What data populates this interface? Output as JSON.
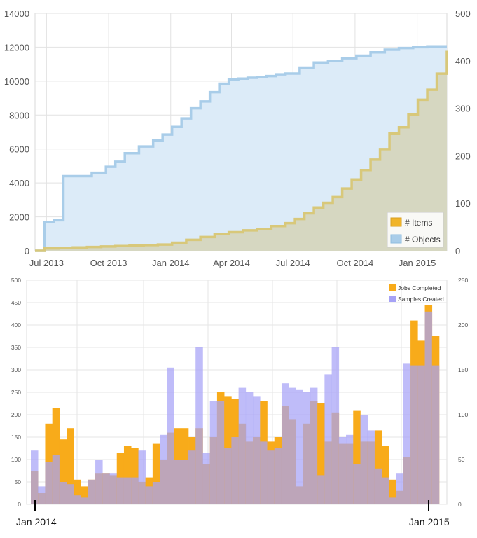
{
  "chart_data": [
    {
      "type": "area",
      "step": true,
      "x_ticks": [
        "Jul 2013",
        "Oct 2013",
        "Jan 2014",
        "Apr 2014",
        "Jul 2014",
        "Oct 2014",
        "Jan 2015"
      ],
      "y_left_ticks": [
        "0",
        "2000",
        "4000",
        "6000",
        "8000",
        "10000",
        "12000",
        "14000"
      ],
      "y_right_ticks": [
        "0",
        "100",
        "200",
        "300",
        "400",
        "500"
      ],
      "ylim_left": [
        0,
        14000
      ],
      "ylim_right": [
        0,
        500
      ],
      "xlim": [
        "2013-06-14",
        "2015-02-14"
      ],
      "grid": true,
      "legend_position": "bottom-right",
      "series": [
        {
          "name": "# Items",
          "axis": "right",
          "color": "#f0b429",
          "fill": "#d5d6be",
          "x": [
            "2013-06-14",
            "2013-06-28",
            "2013-07-19",
            "2013-08-09",
            "2013-08-30",
            "2013-09-20",
            "2013-10-11",
            "2013-11-01",
            "2013-11-22",
            "2013-12-13",
            "2014-01-03",
            "2014-01-24",
            "2014-02-14",
            "2014-03-07",
            "2014-03-28",
            "2014-04-18",
            "2014-05-09",
            "2014-05-30",
            "2014-06-20",
            "2014-07-04",
            "2014-07-18",
            "2014-08-01",
            "2014-08-15",
            "2014-08-29",
            "2014-09-12",
            "2014-09-26",
            "2014-10-10",
            "2014-10-24",
            "2014-11-07",
            "2014-11-21",
            "2014-12-05",
            "2014-12-19",
            "2015-01-02",
            "2015-01-16",
            "2015-01-30",
            "2015-02-14"
          ],
          "values": [
            0,
            5,
            6,
            7,
            8,
            9,
            10,
            11,
            12,
            13,
            17,
            23,
            29,
            35,
            39,
            43,
            46,
            52,
            58,
            67,
            79,
            91,
            101,
            113,
            131,
            150,
            170,
            192,
            214,
            247,
            260,
            287,
            318,
            339,
            373,
            421
          ]
        },
        {
          "name": "# Objects",
          "axis": "left",
          "color": "#a9cde9",
          "fill": "#dcebf8",
          "x": [
            "2013-06-14",
            "2013-06-28",
            "2013-07-12",
            "2013-07-26",
            "2013-08-16",
            "2013-09-06",
            "2013-09-27",
            "2013-10-11",
            "2013-10-25",
            "2013-11-15",
            "2013-12-06",
            "2013-12-20",
            "2014-01-03",
            "2014-01-17",
            "2014-01-31",
            "2014-02-14",
            "2014-02-28",
            "2014-03-14",
            "2014-03-28",
            "2014-04-11",
            "2014-04-25",
            "2014-05-09",
            "2014-05-23",
            "2014-06-06",
            "2014-06-20",
            "2014-07-11",
            "2014-08-01",
            "2014-08-22",
            "2014-09-12",
            "2014-10-03",
            "2014-10-24",
            "2014-11-14",
            "2014-12-05",
            "2014-12-26",
            "2015-01-16",
            "2015-02-14"
          ],
          "values": [
            0,
            1700,
            1800,
            4400,
            4400,
            4600,
            4950,
            5250,
            5750,
            6150,
            6500,
            6850,
            7300,
            7800,
            8400,
            8800,
            9350,
            9850,
            10100,
            10150,
            10200,
            10250,
            10300,
            10400,
            10450,
            10800,
            11100,
            11200,
            11350,
            11500,
            11700,
            11850,
            11950,
            12000,
            12050,
            12050
          ]
        }
      ]
    },
    {
      "type": "bar",
      "overlapping": true,
      "x_labels": [
        "Jan 2014",
        "Jan 2015"
      ],
      "y_left_ticks": [
        "0",
        "50",
        "100",
        "150",
        "200",
        "250",
        "300",
        "350",
        "400",
        "450",
        "500"
      ],
      "y_right_ticks": [
        "0",
        "50",
        "100",
        "150",
        "200",
        "250"
      ],
      "ylim_left": [
        0,
        500
      ],
      "ylim_right": [
        0,
        250
      ],
      "grid": true,
      "legend_position": "top-right",
      "series": [
        {
          "name": "Jobs Completed",
          "axis": "left",
          "color": "#f8ab1a",
          "values": [
            75,
            25,
            180,
            215,
            145,
            170,
            55,
            40,
            55,
            70,
            70,
            65,
            115,
            130,
            125,
            50,
            60,
            135,
            100,
            160,
            170,
            170,
            150,
            170,
            90,
            150,
            250,
            240,
            235,
            180,
            140,
            150,
            230,
            140,
            150,
            220,
            190,
            40,
            180,
            230,
            225,
            140,
            205,
            135,
            135,
            210,
            140,
            140,
            165,
            130,
            55,
            30,
            105,
            410,
            365,
            445,
            375
          ]
        },
        {
          "name": "Samples Created",
          "axis": "left",
          "color": "#a6a2f6",
          "values": [
            120,
            40,
            95,
            110,
            50,
            45,
            20,
            15,
            55,
            100,
            70,
            70,
            60,
            60,
            60,
            120,
            40,
            50,
            155,
            305,
            100,
            100,
            120,
            350,
            115,
            230,
            230,
            125,
            150,
            260,
            250,
            240,
            140,
            120,
            125,
            270,
            260,
            255,
            250,
            260,
            65,
            290,
            350,
            150,
            155,
            90,
            200,
            165,
            80,
            60,
            15,
            70,
            315,
            310,
            310,
            430,
            310
          ]
        }
      ]
    }
  ],
  "text": {
    "legend_items": "# Items",
    "legend_objects": "# Objects",
    "legend_jobs": "Jobs Completed",
    "legend_samples": "Samples Created",
    "bottom_jan2014": "Jan 2014",
    "bottom_jan2015": "Jan 2015"
  }
}
